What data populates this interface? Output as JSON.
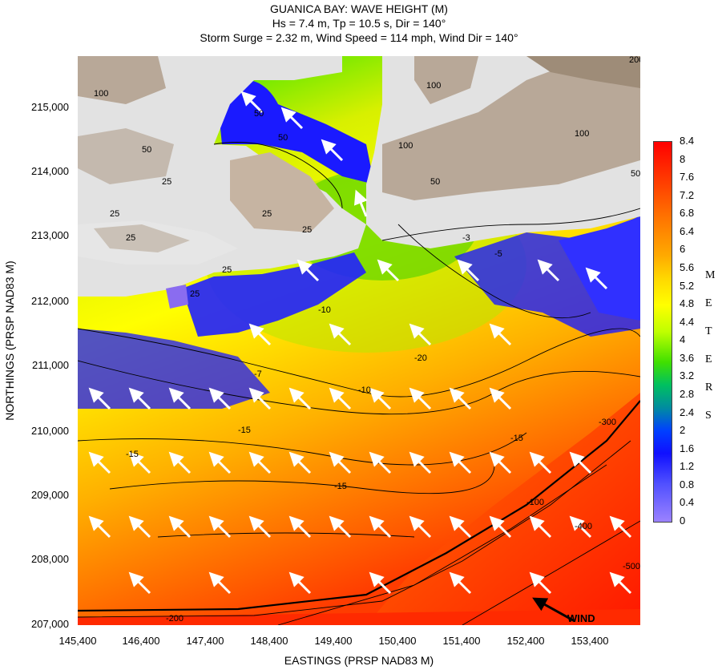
{
  "title": {
    "line1": "GUANICA BAY: WAVE HEIGHT (M)",
    "line2": "Hs = 7.4 m, Tp = 10.5 s, Dir = 140°",
    "line3": "Storm Surge = 2.32 m, Wind Speed = 114 mph, Wind Dir = 140°"
  },
  "axes": {
    "xlabel": "EASTINGS (PRSP NAD83 M)",
    "ylabel": "NORTHINGS (PRSP NAD83 M)",
    "xticks": [
      "145,400",
      "146,400",
      "147,400",
      "148,400",
      "149,400",
      "150,400",
      "151,400",
      "152,400",
      "153,400"
    ],
    "yticks": [
      "215,000",
      "214,000",
      "213,000",
      "212,000",
      "211,000",
      "210,000",
      "209,000",
      "208,000",
      "207,000"
    ]
  },
  "colorbar": {
    "ticks": [
      "8.4",
      "8",
      "7.6",
      "7.2",
      "6.8",
      "6.4",
      "6",
      "5.6",
      "5.2",
      "4.8",
      "4.4",
      "4",
      "3.6",
      "3.2",
      "2.8",
      "2.4",
      "2",
      "1.6",
      "1.2",
      "0.8",
      "0.4",
      "0"
    ],
    "unit_letters": [
      "M",
      "E",
      "T",
      "E",
      "R",
      "S"
    ]
  },
  "wind_label": "WIND",
  "contour_labels": {
    "land": [
      "200",
      "100",
      "100",
      "100",
      "100",
      "50",
      "50",
      "50",
      "50",
      "50",
      "25",
      "25",
      "25",
      "25",
      "25",
      "25",
      "25"
    ],
    "water": [
      "-3",
      "-5",
      "-7",
      "-10",
      "-10",
      "-15",
      "-15",
      "-15",
      "-15",
      "-20",
      "-100",
      "-200",
      "-300",
      "-400",
      "-500"
    ]
  },
  "colors": {
    "land": "#b8a898",
    "shore": "#e2e2e2",
    "deep": "#ff2a00",
    "shallow_blue": "#1a1aff",
    "arrow": "#ffffff",
    "wind_arrow": "#000000"
  }
}
